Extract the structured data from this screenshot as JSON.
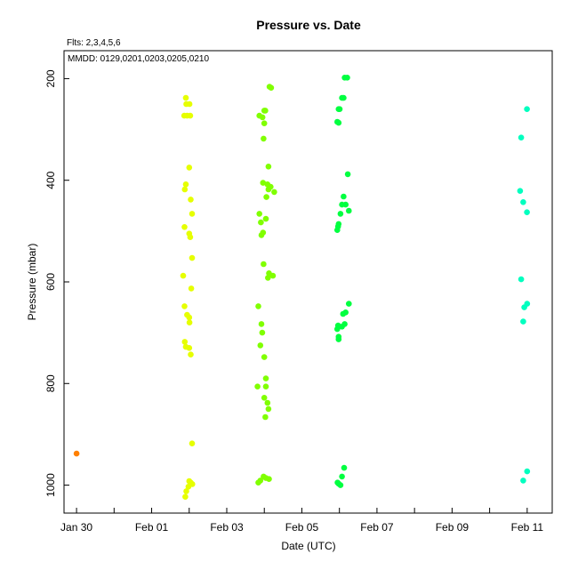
{
  "chart_data": {
    "type": "scatter",
    "title": "Pressure  vs. Date",
    "annotations": {
      "fits": "Flts: 2,3,4,5,6",
      "mmdd": "MMDD: 0129,0201,0203,0205,0210"
    },
    "xlabel": "Date (UTC)",
    "ylabel": "Pressure (mbar)",
    "x_ticks": [
      "Jan 30",
      "Feb 01",
      "Feb 03",
      "Feb 05",
      "Feb 07",
      "Feb 09",
      "Feb 11"
    ],
    "x_minor_ticks": [
      "Jan 31",
      "Feb 02",
      "Feb 04",
      "Feb 06",
      "Feb 08",
      "Feb 10"
    ],
    "x_range": [
      "Jan 29 16:00",
      "Feb 11 16:00"
    ],
    "y_ticks": [
      200,
      400,
      600,
      800,
      1000
    ],
    "ylim": [
      1055,
      145
    ],
    "y_inverted": true,
    "grid": false,
    "series": [
      {
        "color": "#ff8000",
        "points": [
          [
            "Jan 30 00:00",
            938
          ]
        ]
      },
      {
        "color": "#e6ff00",
        "points": [
          [
            "Feb 01 21:50",
            238
          ],
          [
            "Feb 01 22:10",
            250
          ],
          [
            "Feb 02 00:10",
            250
          ],
          [
            "Feb 01 20:50",
            273
          ],
          [
            "Feb 01 22:40",
            273
          ],
          [
            "Feb 02 00:40",
            273
          ],
          [
            "Feb 02 00:00",
            375
          ],
          [
            "Feb 01 21:50",
            408
          ],
          [
            "Feb 01 21:10",
            418
          ],
          [
            "Feb 02 01:00",
            438
          ],
          [
            "Feb 02 01:50",
            466
          ],
          [
            "Feb 01 21:00",
            492
          ],
          [
            "Feb 02 00:00",
            505
          ],
          [
            "Feb 02 00:40",
            512
          ],
          [
            "Feb 02 01:50",
            553
          ],
          [
            "Feb 01 20:10",
            588
          ],
          [
            "Feb 02 01:20",
            613
          ],
          [
            "Feb 01 21:00",
            648
          ],
          [
            "Feb 01 22:40",
            665
          ],
          [
            "Feb 02 00:00",
            670
          ],
          [
            "Feb 02 00:10",
            680
          ],
          [
            "Feb 01 21:10",
            718
          ],
          [
            "Feb 01 21:50",
            728
          ],
          [
            "Feb 02 00:00",
            730
          ],
          [
            "Feb 02 01:00",
            743
          ],
          [
            "Feb 02 01:50",
            918
          ],
          [
            "Feb 02 00:00",
            992
          ],
          [
            "Feb 02 01:00",
            995
          ],
          [
            "Feb 02 02:00",
            998
          ],
          [
            "Feb 01 23:30",
            1003
          ],
          [
            "Feb 01 22:10",
            1012
          ],
          [
            "Feb 01 21:30",
            1023
          ]
        ]
      },
      {
        "color": "#80ff00",
        "points": [
          [
            "Feb 04 03:20",
            216
          ],
          [
            "Feb 04 04:20",
            218
          ],
          [
            "Feb 04 00:00",
            263
          ],
          [
            "Feb 04 00:40",
            263
          ],
          [
            "Feb 03 20:50",
            273
          ],
          [
            "Feb 03 22:50",
            276
          ],
          [
            "Feb 04 00:00",
            288
          ],
          [
            "Feb 03 23:30",
            318
          ],
          [
            "Feb 04 02:40",
            373
          ],
          [
            "Feb 03 23:10",
            405
          ],
          [
            "Feb 04 02:00",
            408
          ],
          [
            "Feb 04 04:00",
            413
          ],
          [
            "Feb 04 02:40",
            418
          ],
          [
            "Feb 04 06:20",
            423
          ],
          [
            "Feb 04 01:20",
            433
          ],
          [
            "Feb 03 20:50",
            466
          ],
          [
            "Feb 04 01:00",
            476
          ],
          [
            "Feb 03 21:50",
            483
          ],
          [
            "Feb 03 23:10",
            503
          ],
          [
            "Feb 03 22:10",
            508
          ],
          [
            "Feb 03 23:30",
            565
          ],
          [
            "Feb 04 03:00",
            583
          ],
          [
            "Feb 04 05:30",
            588
          ],
          [
            "Feb 04 02:20",
            592
          ],
          [
            "Feb 03 20:10",
            648
          ],
          [
            "Feb 03 22:10",
            683
          ],
          [
            "Feb 03 22:40",
            700
          ],
          [
            "Feb 03 21:30",
            725
          ],
          [
            "Feb 04 00:00",
            748
          ],
          [
            "Feb 04 01:00",
            790
          ],
          [
            "Feb 03 19:40",
            806
          ],
          [
            "Feb 04 01:00",
            806
          ],
          [
            "Feb 04 00:00",
            828
          ],
          [
            "Feb 04 02:00",
            838
          ],
          [
            "Feb 04 02:40",
            850
          ],
          [
            "Feb 04 00:40",
            866
          ],
          [
            "Feb 03 23:30",
            983
          ],
          [
            "Feb 04 01:00",
            986
          ],
          [
            "Feb 04 03:00",
            988
          ],
          [
            "Feb 03 21:30",
            991
          ],
          [
            "Feb 03 20:10",
            995
          ]
        ]
      },
      {
        "color": "#00ff40",
        "points": [
          [
            "Feb 06 03:20",
            198
          ],
          [
            "Feb 06 05:00",
            198
          ],
          [
            "Feb 06 01:40",
            238
          ],
          [
            "Feb 06 02:40",
            238
          ],
          [
            "Feb 05 23:30",
            260
          ],
          [
            "Feb 06 00:10",
            260
          ],
          [
            "Feb 05 22:40",
            285
          ],
          [
            "Feb 05 23:30",
            287
          ],
          [
            "Feb 06 05:20",
            388
          ],
          [
            "Feb 06 02:40",
            432
          ],
          [
            "Feb 06 01:40",
            448
          ],
          [
            "Feb 06 04:00",
            448
          ],
          [
            "Feb 06 06:00",
            460
          ],
          [
            "Feb 06 00:40",
            466
          ],
          [
            "Feb 05 23:30",
            486
          ],
          [
            "Feb 05 23:10",
            491
          ],
          [
            "Feb 05 22:40",
            498
          ],
          [
            "Feb 06 06:00",
            643
          ],
          [
            "Feb 06 04:00",
            660
          ],
          [
            "Feb 06 02:20",
            663
          ],
          [
            "Feb 06 03:20",
            683
          ],
          [
            "Feb 05 23:10",
            686
          ],
          [
            "Feb 06 01:40",
            688
          ],
          [
            "Feb 05 22:40",
            693
          ],
          [
            "Feb 05 23:30",
            708
          ],
          [
            "Feb 05 23:30",
            713
          ],
          [
            "Feb 06 03:00",
            966
          ],
          [
            "Feb 06 01:40",
            983
          ],
          [
            "Feb 05 22:50",
            995
          ],
          [
            "Feb 05 23:30",
            997
          ],
          [
            "Feb 06 00:40",
            1000
          ]
        ]
      },
      {
        "color": "#00ffbf",
        "points": [
          [
            "Feb 10 23:50",
            260
          ],
          [
            "Feb 10 20:10",
            316
          ],
          [
            "Feb 10 19:30",
            421
          ],
          [
            "Feb 10 21:30",
            443
          ],
          [
            "Feb 10 23:50",
            463
          ],
          [
            "Feb 10 20:10",
            595
          ],
          [
            "Feb 11 00:00",
            643
          ],
          [
            "Feb 10 22:10",
            650
          ],
          [
            "Feb 10 21:30",
            678
          ],
          [
            "Feb 11 00:00",
            973
          ],
          [
            "Feb 10 21:30",
            991
          ]
        ]
      }
    ]
  }
}
